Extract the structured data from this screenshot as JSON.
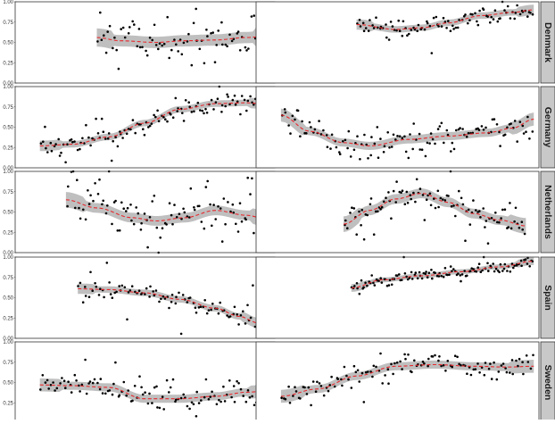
{
  "chart_data": {
    "type": "scatter",
    "layout": "faceted-grid",
    "facet_strip_position": "right",
    "y_axis": {
      "ylim": [
        0,
        1
      ],
      "ticks": [
        0,
        0.25,
        0.5,
        0.75,
        1.0
      ],
      "tick_labels": [
        "0.00",
        "0.25",
        "0.50",
        "0.75",
        "1.00"
      ]
    },
    "x_axis": {
      "xlim": [
        0,
        1
      ],
      "show_ticks": false
    },
    "panel_columns": [
      "left",
      "right"
    ],
    "colors": {
      "points": "#000000",
      "trend": "#e8292e",
      "band": "#b4b4b4",
      "strip_bg": "#c8c8c8",
      "panel_border": "#333333"
    },
    "rows": [
      {
        "strip": "Denmark",
        "panels": [
          {
            "x_range": [
              0.25,
              0.98
            ],
            "trend": [
              [
                0.25,
                0.56
              ],
              [
                0.35,
                0.52
              ],
              [
                0.5,
                0.5
              ],
              [
                0.62,
                0.52
              ],
              [
                0.75,
                0.53
              ],
              [
                0.88,
                0.56
              ],
              [
                0.98,
                0.58
              ]
            ],
            "band": 0.07,
            "noise": 0.14,
            "seed": 11,
            "n": 80
          },
          {
            "x_range": [
              0.3,
              0.98
            ],
            "trend": [
              [
                0.3,
                0.72
              ],
              [
                0.45,
                0.66
              ],
              [
                0.55,
                0.68
              ],
              [
                0.65,
                0.74
              ],
              [
                0.78,
                0.83
              ],
              [
                0.9,
                0.87
              ],
              [
                0.98,
                0.9
              ]
            ],
            "band": 0.04,
            "noise": 0.06,
            "seed": 12,
            "n": 95
          }
        ]
      },
      {
        "strip": "Germany",
        "panels": [
          {
            "x_range": [
              0.01,
              0.98
            ],
            "trend": [
              [
                0.01,
                0.27
              ],
              [
                0.15,
                0.29
              ],
              [
                0.3,
                0.38
              ],
              [
                0.45,
                0.55
              ],
              [
                0.6,
                0.72
              ],
              [
                0.75,
                0.79
              ],
              [
                0.88,
                0.8
              ],
              [
                0.98,
                0.78
              ]
            ],
            "band": 0.04,
            "noise": 0.07,
            "seed": 21,
            "n": 120
          },
          {
            "x_range": [
              0.01,
              0.98
            ],
            "trend": [
              [
                0.01,
                0.65
              ],
              [
                0.12,
                0.45
              ],
              [
                0.25,
                0.31
              ],
              [
                0.35,
                0.27
              ],
              [
                0.5,
                0.35
              ],
              [
                0.65,
                0.39
              ],
              [
                0.8,
                0.43
              ],
              [
                0.9,
                0.49
              ],
              [
                0.98,
                0.6
              ]
            ],
            "band": 0.05,
            "noise": 0.1,
            "seed": 22,
            "n": 120
          }
        ]
      },
      {
        "strip": "Netherlands",
        "panels": [
          {
            "x_range": [
              0.12,
              0.98
            ],
            "trend": [
              [
                0.12,
                0.65
              ],
              [
                0.25,
                0.55
              ],
              [
                0.4,
                0.43
              ],
              [
                0.5,
                0.39
              ],
              [
                0.62,
                0.43
              ],
              [
                0.75,
                0.52
              ],
              [
                0.88,
                0.46
              ],
              [
                0.98,
                0.4
              ]
            ],
            "band": 0.06,
            "noise": 0.16,
            "seed": 31,
            "n": 100
          },
          {
            "x_range": [
              0.25,
              0.95
            ],
            "trend": [
              [
                0.25,
                0.35
              ],
              [
                0.35,
                0.52
              ],
              [
                0.45,
                0.66
              ],
              [
                0.55,
                0.73
              ],
              [
                0.65,
                0.62
              ],
              [
                0.75,
                0.48
              ],
              [
                0.85,
                0.4
              ],
              [
                0.95,
                0.33
              ]
            ],
            "band": 0.06,
            "noise": 0.12,
            "seed": 32,
            "n": 100
          }
        ]
      },
      {
        "strip": "Spain",
        "panels": [
          {
            "x_range": [
              0.17,
              0.93
            ],
            "trend": [
              [
                0.17,
                0.61
              ],
              [
                0.3,
                0.6
              ],
              [
                0.45,
                0.56
              ],
              [
                0.6,
                0.48
              ],
              [
                0.75,
                0.37
              ],
              [
                0.85,
                0.27
              ],
              [
                0.93,
                0.19
              ]
            ],
            "band": 0.04,
            "noise": 0.06,
            "seed": 41,
            "n": 90
          },
          {
            "x_range": [
              0.28,
              0.98
            ],
            "trend": [
              [
                0.28,
                0.62
              ],
              [
                0.4,
                0.72
              ],
              [
                0.55,
                0.77
              ],
              [
                0.7,
                0.82
              ],
              [
                0.85,
                0.88
              ],
              [
                0.98,
                0.95
              ]
            ],
            "band": 0.03,
            "noise": 0.04,
            "seed": 42,
            "n": 120
          }
        ]
      },
      {
        "strip": "Sweden",
        "panels": [
          {
            "x_range": [
              0.01,
              0.98
            ],
            "trend": [
              [
                0.01,
                0.47
              ],
              [
                0.15,
                0.46
              ],
              [
                0.3,
                0.44
              ],
              [
                0.45,
                0.3
              ],
              [
                0.6,
                0.3
              ],
              [
                0.75,
                0.33
              ],
              [
                0.88,
                0.38
              ],
              [
                0.98,
                0.4
              ]
            ],
            "band": 0.05,
            "noise": 0.1,
            "seed": 51,
            "n": 110
          },
          {
            "x_range": [
              0.01,
              0.98
            ],
            "trend": [
              [
                0.01,
                0.33
              ],
              [
                0.15,
                0.42
              ],
              [
                0.3,
                0.58
              ],
              [
                0.45,
                0.7
              ],
              [
                0.6,
                0.72
              ],
              [
                0.75,
                0.7
              ],
              [
                0.88,
                0.69
              ],
              [
                0.98,
                0.7
              ]
            ],
            "band": 0.05,
            "noise": 0.07,
            "seed": 52,
            "n": 120
          }
        ]
      }
    ]
  }
}
